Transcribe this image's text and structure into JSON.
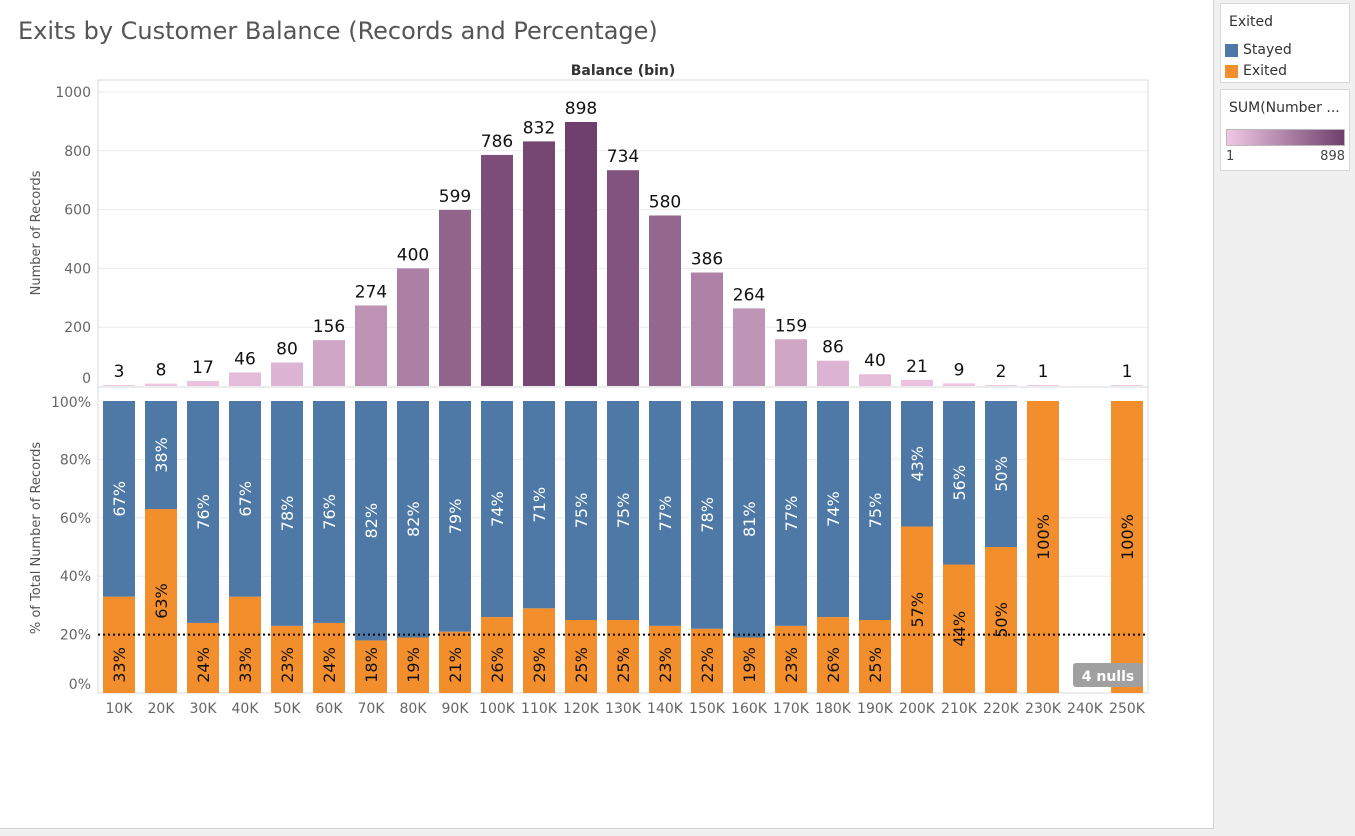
{
  "title": "Exits by Customer Balance (Records and Percentage)",
  "legend_exited": {
    "title": "Exited",
    "items": [
      {
        "label": "Stayed",
        "color": "#4e79a7"
      },
      {
        "label": "Exited",
        "color": "#f28e2b"
      }
    ]
  },
  "legend_sum": {
    "title": "SUM(Number ...",
    "min": "1",
    "max": "898",
    "color_low": "#f0c8e4",
    "color_high": "#6e3f6c"
  },
  "chart_data": [
    {
      "type": "bar",
      "title": "Balance (bin)",
      "ylabel": "Number of Records",
      "ylim": [
        0,
        1000
      ],
      "yticks": [
        0,
        200,
        400,
        600,
        800,
        1000
      ],
      "categories": [
        "10K",
        "20K",
        "30K",
        "40K",
        "50K",
        "60K",
        "70K",
        "80K",
        "90K",
        "100K",
        "110K",
        "120K",
        "130K",
        "140K",
        "150K",
        "160K",
        "170K",
        "180K",
        "190K",
        "200K",
        "210K",
        "220K",
        "230K",
        "240K",
        "250K"
      ],
      "values": [
        3,
        8,
        17,
        46,
        80,
        156,
        274,
        400,
        599,
        786,
        832,
        898,
        734,
        580,
        386,
        264,
        159,
        86,
        40,
        21,
        9,
        2,
        1,
        null,
        1
      ],
      "grid": true
    },
    {
      "type": "bar",
      "stacked": true,
      "ylabel": "% of Total Number of Records",
      "ylim": [
        0,
        100
      ],
      "yticks": [
        "0%",
        "20%",
        "40%",
        "60%",
        "80%",
        "100%"
      ],
      "categories": [
        "10K",
        "20K",
        "30K",
        "40K",
        "50K",
        "60K",
        "70K",
        "80K",
        "90K",
        "100K",
        "110K",
        "120K",
        "130K",
        "140K",
        "150K",
        "160K",
        "170K",
        "180K",
        "190K",
        "200K",
        "210K",
        "220K",
        "230K",
        "240K",
        "250K"
      ],
      "series": [
        {
          "name": "Exited",
          "color": "#f28e2b",
          "values": [
            33,
            63,
            24,
            33,
            23,
            24,
            18,
            19,
            21,
            26,
            29,
            25,
            25,
            23,
            22,
            19,
            23,
            26,
            25,
            57,
            44,
            50,
            100,
            null,
            100
          ]
        },
        {
          "name": "Stayed",
          "color": "#4e79a7",
          "values": [
            67,
            38,
            76,
            67,
            78,
            76,
            82,
            82,
            79,
            74,
            71,
            75,
            75,
            77,
            78,
            81,
            77,
            74,
            75,
            43,
            56,
            50,
            null,
            null,
            null
          ]
        }
      ],
      "reference_line": 20,
      "nulls_indicator": "4 nulls",
      "grid": true
    }
  ]
}
